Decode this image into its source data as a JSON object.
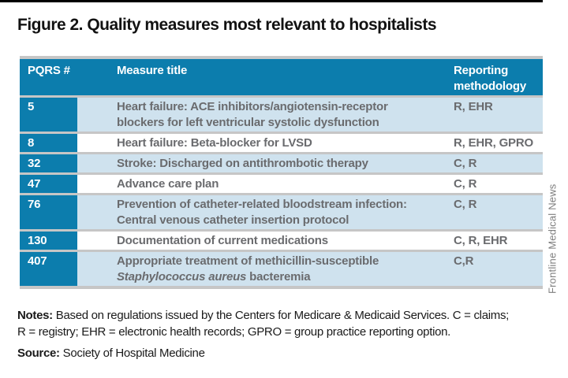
{
  "page": {
    "title": "Figure 2. Quality measures most relevant to hospitalists",
    "credit": "Frontline Medical News"
  },
  "table": {
    "columns": {
      "pqrs": "PQRS #",
      "measure": "Measure title",
      "reporting": "Reporting\nmethodology"
    },
    "rows": [
      {
        "pqrs": "5",
        "measure": "Heart failure: ACE inhibitors/angiotensin-receptor\nblockers for left ventricular systolic dysfunction",
        "reporting": "R, EHR"
      },
      {
        "pqrs": "8",
        "measure": "Heart failure: Beta-blocker for LVSD",
        "reporting": "R, EHR, GPRO"
      },
      {
        "pqrs": "32",
        "measure": "Stroke: Discharged on antithrombotic therapy",
        "reporting": "C, R"
      },
      {
        "pqrs": "47",
        "measure": "Advance care plan",
        "reporting": "C, R"
      },
      {
        "pqrs": "76",
        "measure": "Prevention of catheter-related bloodstream infection:\nCentral venous catheter insertion protocol",
        "reporting": "C, R"
      },
      {
        "pqrs": "130",
        "measure": "Documentation of current medications",
        "reporting": "C, R, EHR"
      },
      {
        "pqrs": "407",
        "measure_part1": "Appropriate treatment of methicillin-susceptible\n",
        "measure_italic": "Staphylococcus aureus",
        "measure_part2": " bacteremia",
        "reporting": "C,R"
      }
    ]
  },
  "notes": {
    "label": "Notes:",
    "text": " Based on regulations issued by the Centers for Medicare & Medicaid Services. C = claims;\nR = registry; EHR = electronic health records; GPRO = group practice reporting option."
  },
  "source": {
    "label": "Source:",
    "text": " Society of Hospital Medicine"
  },
  "colors": {
    "header_teal": "#0c7dad",
    "row_alt_blue": "#cfe2ee",
    "separator_gray": "#c6c6c6",
    "cell_text_gray": "#6a6b6e"
  }
}
